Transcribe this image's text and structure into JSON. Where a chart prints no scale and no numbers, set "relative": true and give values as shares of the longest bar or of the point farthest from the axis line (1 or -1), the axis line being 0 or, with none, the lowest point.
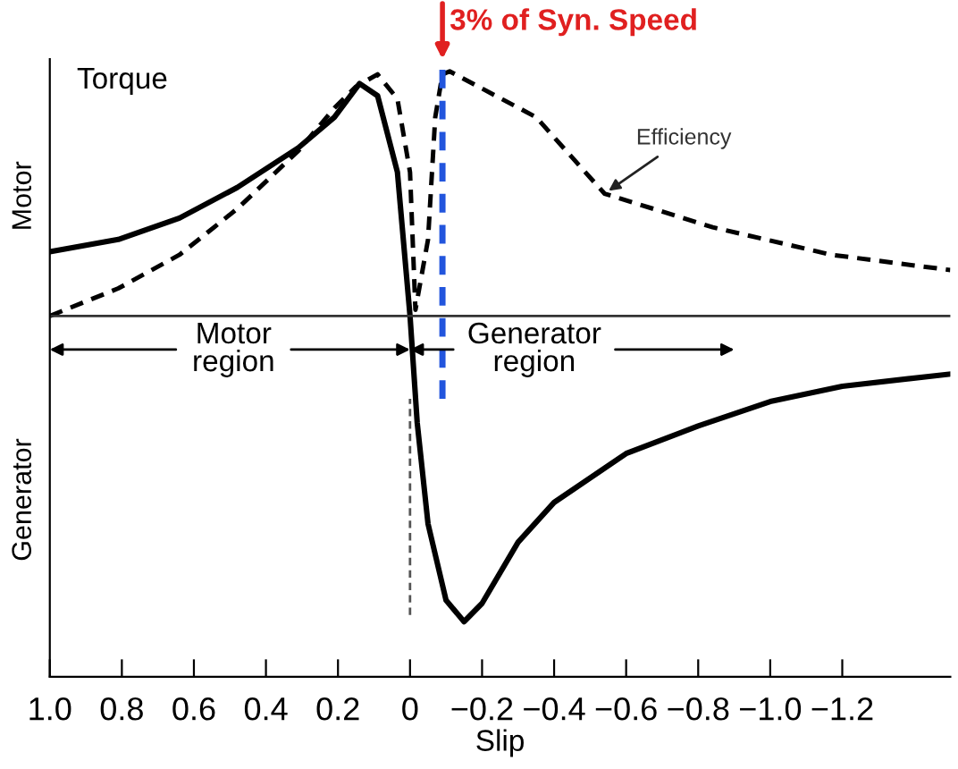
{
  "chart_data": {
    "type": "line",
    "relative": true,
    "xlabel": "Slip",
    "xlim": [
      1.0,
      -1.5
    ],
    "xticks": [
      {
        "value": 1.0,
        "label": "1.0"
      },
      {
        "value": 0.8,
        "label": "0.8"
      },
      {
        "value": 0.6,
        "label": "0.6"
      },
      {
        "value": 0.4,
        "label": "0.4"
      },
      {
        "value": 0.2,
        "label": "0.2"
      },
      0,
      {
        "value": -0.2,
        "label": "−0.2"
      },
      {
        "value": -0.4,
        "label": "−0.4"
      },
      {
        "value": -0.6,
        "label": "−0.6"
      },
      {
        "value": -0.8,
        "label": "−0.8"
      },
      {
        "value": -1.0,
        "label": "−1.0"
      },
      {
        "value": -1.2,
        "label": "−1.2"
      }
    ],
    "series": [
      {
        "color": "#000000",
        "line_style": "solid",
        "x": [
          1.0,
          0.81,
          0.64,
          0.48,
          0.31,
          0.21,
          0.14,
          0.09,
          0.035,
          0,
          -0.02,
          -0.05,
          -0.1,
          -0.15,
          -0.2,
          -0.3,
          -0.4,
          -0.6,
          -0.8,
          -1.0,
          -1.2,
          -1.5
        ],
        "values": [
          0.21,
          0.25,
          0.32,
          0.42,
          0.55,
          0.65,
          0.76,
          0.72,
          0.47,
          0,
          -0.35,
          -0.68,
          -0.93,
          -1.0,
          -0.94,
          -0.74,
          -0.61,
          -0.45,
          -0.36,
          -0.28,
          -0.23,
          -0.19
        ]
      },
      {
        "color": "#000000",
        "line_style": "dashed",
        "x": [
          1.0,
          0.81,
          0.64,
          0.48,
          0.31,
          0.21,
          0.15,
          0.09,
          0.035,
          0,
          -0.015,
          -0.05,
          -0.07,
          -0.09,
          -0.11,
          -0.35,
          -0.54,
          -0.84,
          -1.17,
          -1.5
        ],
        "values": [
          0,
          0.09,
          0.2,
          0.35,
          0.54,
          0.68,
          0.75,
          0.79,
          0.71,
          0.47,
          0.02,
          0.25,
          0.65,
          0.79,
          0.8,
          0.65,
          0.4,
          0.29,
          0.2,
          0.15
        ]
      }
    ],
    "ref_lines": [
      {
        "axis": "x",
        "value": -0.09,
        "label": "3% of Syn. Speed",
        "color": "#2255dd",
        "line_style": "dashed"
      },
      {
        "axis": "x",
        "value": 0,
        "color": "#555555",
        "line_style": "dashed"
      }
    ],
    "annotations": [
      "Torque",
      "Motor",
      "Generator",
      "Motor\nregion",
      "Generator\nregion",
      {
        "text": "Efficiency",
        "x": -0.54,
        "y": 0.4
      }
    ],
    "grid": false,
    "legend": false
  }
}
